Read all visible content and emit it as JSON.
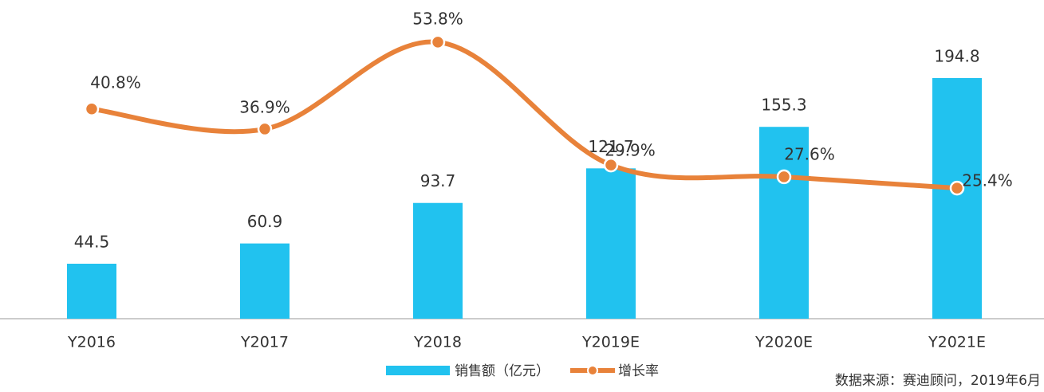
{
  "chart_data": {
    "type": "bar",
    "categories": [
      "Y2016",
      "Y2017",
      "Y2018",
      "Y2019E",
      "Y2020E",
      "Y2021E"
    ],
    "series": [
      {
        "name": "销售额（亿元）",
        "type": "bar",
        "color": "#21c2ef",
        "values": [
          44.5,
          60.9,
          93.7,
          121.7,
          155.3,
          194.8
        ]
      },
      {
        "name": "增长率",
        "type": "line",
        "axis": "y2",
        "color": "#e8823a",
        "values": [
          40.8,
          36.9,
          53.8,
          29.9,
          27.6,
          25.4
        ],
        "value_labels": [
          "40.8%",
          "36.9%",
          "53.8%",
          "29.9%",
          "27.6%",
          "25.4%"
        ]
      }
    ],
    "ylim": [
      0,
      258
    ],
    "y2lim": [
      0,
      62
    ],
    "legend": "bottom",
    "source": "数据来源：赛迪顾问，2019年6月"
  }
}
